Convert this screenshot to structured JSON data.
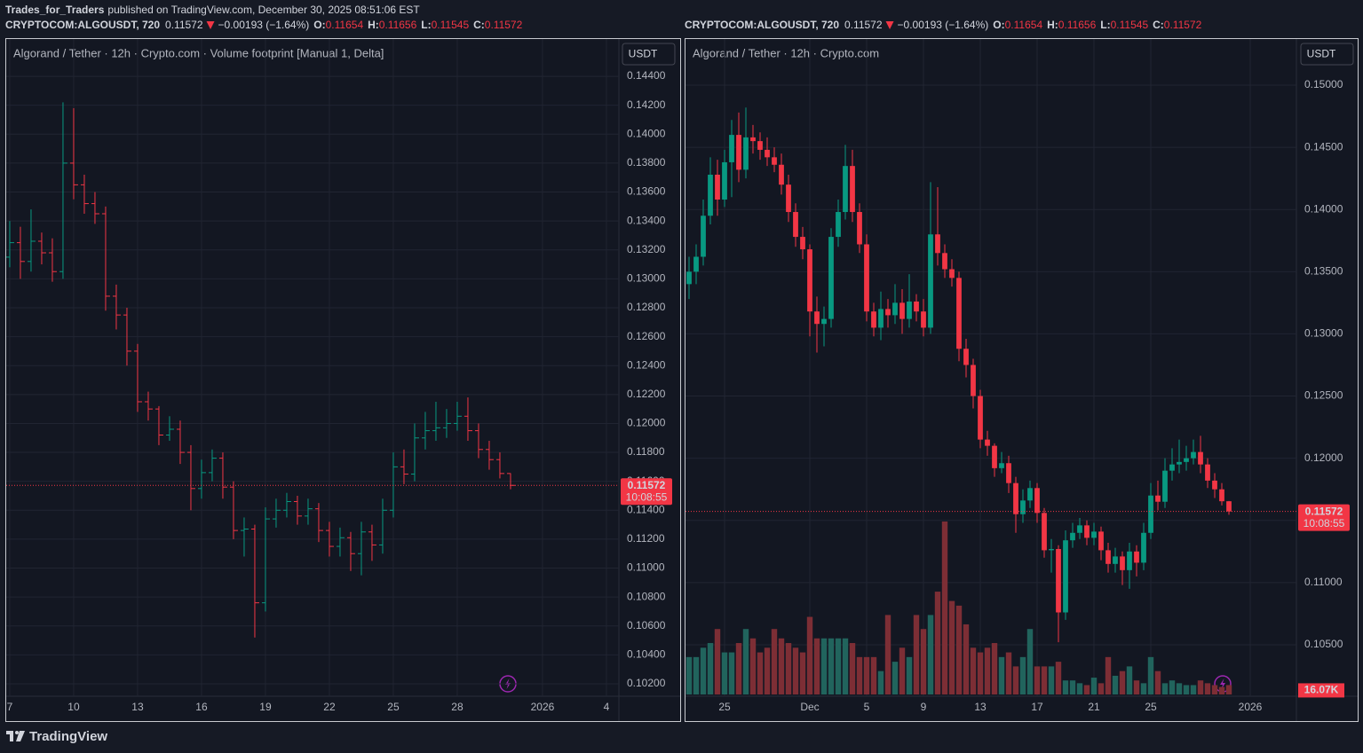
{
  "header": {
    "author": "Trades_for_Traders",
    "published": "published on TradingView.com, December 30, 2025 08:51:06 EST"
  },
  "footer": {
    "brand": "TradingView"
  },
  "chart_data": [
    {
      "type": "ohlc",
      "title": "Algorand / Tether · 12h · Crypto.com · Volume footprint [Manual 1, Delta]",
      "symbol": "CRYPTOCOM:ALGOUSDT, 720",
      "change": "−0.00193 (−1.64%)",
      "ohlc_labels": [
        "O:",
        "H:",
        "L:",
        "C:"
      ],
      "currency": "USDT",
      "countdown": "10:08:55",
      "last_price": 0.11572,
      "up_color": "#089981",
      "down_color": "#f23645",
      "open": [
        0.1315,
        0.1325,
        0.1312,
        0.1326,
        0.1318,
        0.1305,
        0.138,
        0.1365,
        0.1352,
        0.1345,
        0.1288,
        0.1275,
        0.125,
        0.1215,
        0.121,
        0.1192,
        0.1196,
        0.118,
        0.1155,
        0.1166,
        0.1176,
        0.1156,
        0.1126,
        0.1127,
        0.1076,
        0.1134,
        0.114,
        0.1146,
        0.1136,
        0.1141,
        0.1126,
        0.1115,
        0.1121,
        0.111,
        0.1125,
        0.1116,
        0.114,
        0.117,
        0.1165,
        0.119,
        0.1195,
        0.1197,
        0.12,
        0.1205,
        0.1195,
        0.1182,
        0.1175,
        0.11654
      ],
      "high": [
        0.134,
        0.1336,
        0.1348,
        0.1332,
        0.1328,
        0.1422,
        0.1418,
        0.1372,
        0.136,
        0.135,
        0.1296,
        0.128,
        0.1255,
        0.1222,
        0.1212,
        0.1205,
        0.1202,
        0.1185,
        0.1175,
        0.1182,
        0.118,
        0.116,
        0.1135,
        0.113,
        0.1142,
        0.1148,
        0.1152,
        0.115,
        0.1148,
        0.1145,
        0.1132,
        0.1128,
        0.1125,
        0.1132,
        0.113,
        0.1148,
        0.118,
        0.1182,
        0.12,
        0.1208,
        0.1215,
        0.121,
        0.1215,
        0.1218,
        0.12,
        0.1188,
        0.118,
        0.11656
      ],
      "low": [
        0.1308,
        0.13,
        0.1305,
        0.131,
        0.1298,
        0.13,
        0.1355,
        0.1345,
        0.1338,
        0.1278,
        0.1265,
        0.124,
        0.1208,
        0.1202,
        0.1185,
        0.1188,
        0.1172,
        0.114,
        0.1148,
        0.116,
        0.1148,
        0.112,
        0.1108,
        0.1052,
        0.107,
        0.1128,
        0.1135,
        0.113,
        0.113,
        0.1118,
        0.1108,
        0.1108,
        0.1098,
        0.1095,
        0.1105,
        0.111,
        0.1135,
        0.1158,
        0.116,
        0.1182,
        0.1188,
        0.119,
        0.1195,
        0.1188,
        0.1176,
        0.1168,
        0.1162,
        0.11545
      ],
      "close": [
        0.1325,
        0.1312,
        0.1326,
        0.1318,
        0.1305,
        0.138,
        0.1365,
        0.1352,
        0.1345,
        0.1288,
        0.1275,
        0.125,
        0.1215,
        0.121,
        0.1192,
        0.1196,
        0.118,
        0.1155,
        0.1166,
        0.1176,
        0.1156,
        0.1126,
        0.1127,
        0.1076,
        0.1134,
        0.114,
        0.1146,
        0.1136,
        0.1141,
        0.1126,
        0.1115,
        0.1121,
        0.111,
        0.1125,
        0.1116,
        0.114,
        0.117,
        0.1165,
        0.119,
        0.1195,
        0.1197,
        0.12,
        0.1205,
        0.1195,
        0.1182,
        0.1175,
        0.11654,
        0.11572
      ],
      "xlim": [
        -0.33,
        57.17
      ],
      "xticks": [
        {
          "value": 0,
          "label": "7"
        },
        {
          "value": 6,
          "label": "10"
        },
        {
          "value": 12,
          "label": "13"
        },
        {
          "value": 18,
          "label": "16"
        },
        {
          "value": 24,
          "label": "19"
        },
        {
          "value": 30,
          "label": "22"
        },
        {
          "value": 36,
          "label": "25"
        },
        {
          "value": 42,
          "label": "28"
        },
        {
          "value": 50,
          "label": "2026"
        },
        {
          "value": 56,
          "label": "4"
        }
      ],
      "ylim": [
        0.10114,
        0.14658
      ],
      "yticks": [
        {
          "value": 0.144,
          "label": "0.14400"
        },
        {
          "value": 0.142,
          "label": "0.14200"
        },
        {
          "value": 0.14,
          "label": "0.14000"
        },
        {
          "value": 0.138,
          "label": "0.13800"
        },
        {
          "value": 0.136,
          "label": "0.13600"
        },
        {
          "value": 0.134,
          "label": "0.13400"
        },
        {
          "value": 0.132,
          "label": "0.13200"
        },
        {
          "value": 0.13,
          "label": "0.13000"
        },
        {
          "value": 0.128,
          "label": "0.12800"
        },
        {
          "value": 0.126,
          "label": "0.12600"
        },
        {
          "value": 0.124,
          "label": "0.12400"
        },
        {
          "value": 0.122,
          "label": "0.12200"
        },
        {
          "value": 0.12,
          "label": "0.12000"
        },
        {
          "value": 0.118,
          "label": "0.11800"
        },
        {
          "value": 0.116,
          "label": "0.11600"
        },
        {
          "value": 0.114,
          "label": "0.11400"
        },
        {
          "value": 0.112,
          "label": "0.11200"
        },
        {
          "value": 0.11,
          "label": "0.11000"
        },
        {
          "value": 0.108,
          "label": "0.10800"
        },
        {
          "value": 0.106,
          "label": "0.10600"
        },
        {
          "value": 0.104,
          "label": "0.10400"
        },
        {
          "value": 0.102,
          "label": "0.10200"
        }
      ],
      "grid": true
    },
    {
      "type": "candlestick",
      "title": "Algorand / Tether · 12h · Crypto.com",
      "symbol": "CRYPTOCOM:ALGOUSDT, 720",
      "change": "−0.00193 (−1.64%)",
      "ohlc_labels": [
        "O:",
        "H:",
        "L:",
        "C:"
      ],
      "currency": "USDT",
      "countdown": "10:08:55",
      "last_price": 0.11572,
      "up_color": "#089981",
      "down_color": "#f23645",
      "volume_up_color": "#21645d",
      "volume_down_color": "#7d2e35",
      "open": [
        0.134,
        0.135,
        0.1362,
        0.1395,
        0.1428,
        0.1408,
        0.1438,
        0.146,
        0.1432,
        0.1458,
        0.1455,
        0.1448,
        0.1442,
        0.1436,
        0.142,
        0.1398,
        0.1378,
        0.1368,
        0.1318,
        0.1308,
        0.1312,
        0.1378,
        0.1398,
        0.1435,
        0.1398,
        0.1372,
        0.1318,
        0.1305,
        0.132,
        0.1315,
        0.1325,
        0.1312,
        0.1326,
        0.1318,
        0.1305,
        0.138,
        0.1365,
        0.1352,
        0.1345,
        0.1288,
        0.1275,
        0.125,
        0.1215,
        0.121,
        0.1192,
        0.1196,
        0.118,
        0.1155,
        0.1166,
        0.1176,
        0.1156,
        0.1126,
        0.1127,
        0.1076,
        0.1134,
        0.114,
        0.1146,
        0.1136,
        0.1141,
        0.1126,
        0.1115,
        0.1121,
        0.111,
        0.1125,
        0.1116,
        0.114,
        0.117,
        0.1165,
        0.119,
        0.1195,
        0.1197,
        0.12,
        0.1205,
        0.1195,
        0.1182,
        0.1175,
        0.11654
      ],
      "high": [
        0.1362,
        0.1372,
        0.1408,
        0.1442,
        0.144,
        0.1448,
        0.1472,
        0.1478,
        0.1482,
        0.1468,
        0.1462,
        0.1458,
        0.145,
        0.1445,
        0.1428,
        0.1405,
        0.1386,
        0.1372,
        0.133,
        0.1322,
        0.1385,
        0.1408,
        0.1452,
        0.1448,
        0.1405,
        0.138,
        0.1325,
        0.1334,
        0.1328,
        0.134,
        0.1336,
        0.1348,
        0.1332,
        0.1328,
        0.1422,
        0.1418,
        0.1372,
        0.136,
        0.135,
        0.1296,
        0.128,
        0.1255,
        0.1222,
        0.1212,
        0.1205,
        0.1202,
        0.1185,
        0.1175,
        0.1182,
        0.118,
        0.116,
        0.1135,
        0.113,
        0.1142,
        0.1148,
        0.1152,
        0.115,
        0.1148,
        0.1145,
        0.1132,
        0.1128,
        0.1125,
        0.1132,
        0.113,
        0.1148,
        0.118,
        0.1182,
        0.12,
        0.1208,
        0.1215,
        0.121,
        0.1215,
        0.1218,
        0.12,
        0.1188,
        0.118,
        0.11656
      ],
      "low": [
        0.1328,
        0.134,
        0.1355,
        0.1388,
        0.1395,
        0.1402,
        0.141,
        0.1422,
        0.1425,
        0.1445,
        0.144,
        0.1435,
        0.143,
        0.1412,
        0.139,
        0.137,
        0.136,
        0.1298,
        0.1285,
        0.129,
        0.1305,
        0.137,
        0.1392,
        0.139,
        0.1365,
        0.131,
        0.1298,
        0.1295,
        0.1305,
        0.1308,
        0.13,
        0.1305,
        0.131,
        0.1298,
        0.13,
        0.1355,
        0.1345,
        0.1338,
        0.1278,
        0.1265,
        0.124,
        0.1208,
        0.1202,
        0.1185,
        0.1188,
        0.1172,
        0.114,
        0.1148,
        0.116,
        0.1148,
        0.112,
        0.1108,
        0.1052,
        0.107,
        0.1128,
        0.1135,
        0.113,
        0.113,
        0.1118,
        0.1108,
        0.1108,
        0.1098,
        0.1095,
        0.1105,
        0.111,
        0.1135,
        0.1158,
        0.116,
        0.1182,
        0.1188,
        0.119,
        0.1195,
        0.1188,
        0.1176,
        0.1168,
        0.1162,
        0.11545
      ],
      "close": [
        0.135,
        0.1362,
        0.1395,
        0.1428,
        0.1408,
        0.1438,
        0.146,
        0.1432,
        0.1458,
        0.1455,
        0.1448,
        0.1442,
        0.1436,
        0.142,
        0.1398,
        0.1378,
        0.1368,
        0.1318,
        0.1308,
        0.1312,
        0.1378,
        0.1398,
        0.1435,
        0.1398,
        0.1372,
        0.1318,
        0.1305,
        0.132,
        0.1315,
        0.1325,
        0.1312,
        0.1326,
        0.1318,
        0.1305,
        0.138,
        0.1365,
        0.1352,
        0.1345,
        0.1288,
        0.1275,
        0.125,
        0.1215,
        0.121,
        0.1192,
        0.1196,
        0.118,
        0.1155,
        0.1166,
        0.1176,
        0.1156,
        0.1126,
        0.1127,
        0.1076,
        0.1134,
        0.114,
        0.1146,
        0.1136,
        0.1141,
        0.1126,
        0.1115,
        0.1121,
        0.111,
        0.1125,
        0.1116,
        0.114,
        0.117,
        0.1165,
        0.119,
        0.1195,
        0.1197,
        0.12,
        0.1205,
        0.1195,
        0.1182,
        0.1175,
        0.11654,
        0.11572
      ],
      "volume": {
        "values": [
          64000,
          64000,
          80000,
          88000,
          112000,
          72000,
          72000,
          88000,
          112000,
          96000,
          72000,
          80000,
          112000,
          96000,
          88000,
          80000,
          72000,
          132800,
          96000,
          96000,
          96000,
          96000,
          96000,
          88000,
          64000,
          64000,
          64000,
          40000,
          136000,
          56000,
          80000,
          64000,
          136000,
          112000,
          136000,
          176000,
          296000,
          160000,
          152000,
          120000,
          80000,
          72000,
          80000,
          88000,
          64000,
          72000,
          48000,
          64000,
          112000,
          48000,
          48000,
          48000,
          56000,
          24000,
          24000,
          19200,
          16000,
          28800,
          19200,
          64000,
          32000,
          40000,
          48000,
          24000,
          19200,
          64000,
          40000,
          19200,
          24000,
          19200,
          16000,
          16000,
          24000,
          19200,
          16000,
          12800,
          16070
        ],
        "value_labels": [
          null,
          null,
          null,
          null,
          null,
          null,
          null,
          null,
          null,
          null,
          null,
          null,
          null,
          null,
          null,
          null,
          null,
          null,
          null,
          null,
          null,
          null,
          null,
          null,
          null,
          null,
          null,
          null,
          null,
          null,
          null,
          null,
          null,
          null,
          null,
          null,
          null,
          null,
          null,
          null,
          null,
          null,
          null,
          null,
          null,
          null,
          null,
          null,
          null,
          null,
          null,
          null,
          null,
          null,
          null,
          null,
          null,
          null,
          null,
          null,
          null,
          null,
          null,
          null,
          null,
          null,
          null,
          null,
          null,
          null,
          null,
          null,
          null,
          null,
          null,
          null,
          "16.07K"
        ]
      },
      "xlim": [
        -0.5,
        85.5
      ],
      "xticks": [
        {
          "value": 5,
          "label": "25"
        },
        {
          "value": 17,
          "label": "Dec"
        },
        {
          "value": 25,
          "label": "5"
        },
        {
          "value": 33,
          "label": "9"
        },
        {
          "value": 41,
          "label": "13"
        },
        {
          "value": 49,
          "label": "17"
        },
        {
          "value": 57,
          "label": "21"
        },
        {
          "value": 65,
          "label": "25"
        },
        {
          "value": 79,
          "label": "2026"
        }
      ],
      "ylim": [
        0.10086,
        0.15371
      ],
      "yticks": [
        {
          "value": 0.15,
          "label": "0.15000"
        },
        {
          "value": 0.145,
          "label": "0.14500"
        },
        {
          "value": 0.14,
          "label": "0.14000"
        },
        {
          "value": 0.135,
          "label": "0.13500"
        },
        {
          "value": 0.13,
          "label": "0.13000"
        },
        {
          "value": 0.125,
          "label": "0.12500"
        },
        {
          "value": 0.12,
          "label": "0.12000"
        },
        {
          "value": 0.115,
          "label": "0.11500"
        },
        {
          "value": 0.11,
          "label": "0.11000"
        },
        {
          "value": 0.105,
          "label": "0.10500"
        }
      ],
      "grid": true
    }
  ]
}
